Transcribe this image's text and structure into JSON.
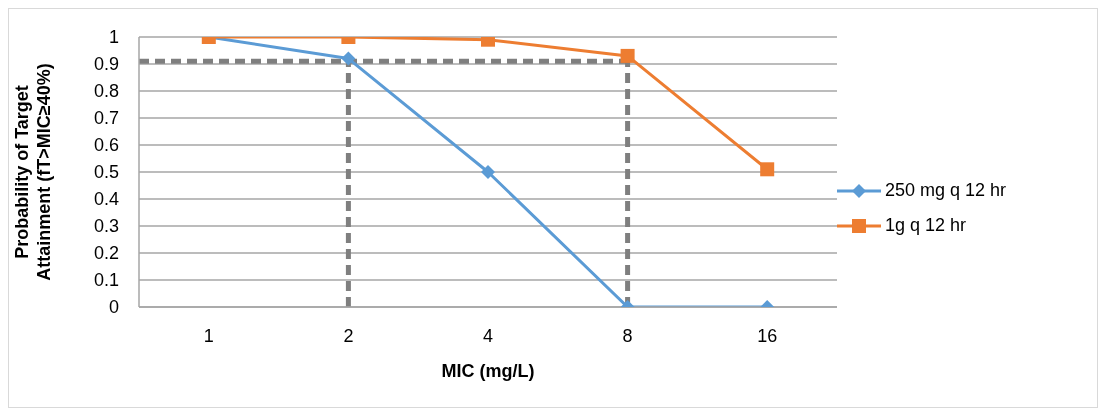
{
  "chart_data": {
    "type": "line",
    "xlabel": "MIC (mg/L)",
    "ylabel": "Probability of Target Attainment (fT>MIC≥40%)",
    "categories": [
      "1",
      "2",
      "4",
      "8",
      "16"
    ],
    "series": [
      {
        "name": "250 mg q 12 hr",
        "color": "#5b9bd5",
        "marker": "diamond",
        "values": [
          1,
          0.92,
          0.5,
          0,
          0
        ]
      },
      {
        "name": "1g q 12 hr",
        "color": "#ed7d31",
        "marker": "square",
        "values": [
          1,
          1,
          0.99,
          0.93,
          0.51
        ]
      }
    ],
    "ylim": [
      0,
      1
    ],
    "yticks": [
      0,
      0.1,
      0.2,
      0.3,
      0.4,
      0.5,
      0.6,
      0.7,
      0.8,
      0.9,
      1
    ],
    "grid": "y",
    "legend": "right",
    "ref_lines": [
      {
        "axis": "y",
        "value": 0.91,
        "color": "#7f7f7f",
        "line_style": "dashed"
      },
      {
        "axis": "x",
        "value": "2",
        "color": "#7f7f7f",
        "line_style": "dashed"
      },
      {
        "axis": "x",
        "value": "8",
        "color": "#7f7f7f",
        "line_style": "dashed"
      }
    ]
  }
}
